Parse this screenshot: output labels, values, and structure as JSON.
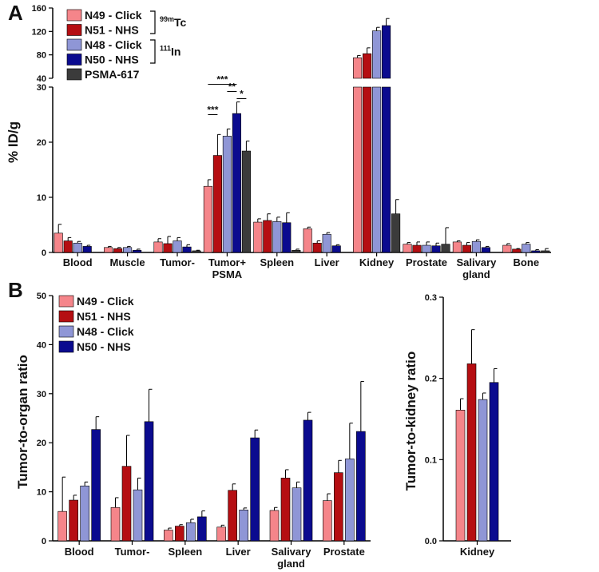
{
  "colors": {
    "N49 - Click": "#f5858a",
    "N51 - NHS": "#b50e12",
    "N48 - Click": "#8f96d6",
    "N50 - NHS": "#0b0b8f",
    "PSMA-617": "#3b3b3b"
  },
  "chart_data": [
    {
      "panel": "A",
      "type": "bar",
      "ylabel": "% ID/g",
      "ylim_lower": [
        0,
        30
      ],
      "ylim_upper": [
        40,
        160
      ],
      "yticks_lower": [
        "0",
        "10",
        "20",
        "30"
      ],
      "yticks_upper": [
        "40",
        "80",
        "120",
        "160"
      ],
      "categories": [
        "Blood",
        "Muscle",
        "Tumor-",
        "Tumor+\nPSMA",
        "Spleen",
        "Liver",
        "Kidney",
        "Prostate",
        "Salivary\ngland",
        "Bone"
      ],
      "isotope_groups": [
        {
          "label": "99mTc",
          "members": [
            "N49 - Click",
            "N51 - NHS"
          ]
        },
        {
          "label": "111In",
          "members": [
            "N48 - Click",
            "N50 - NHS"
          ]
        }
      ],
      "significance": [
        {
          "from": "N49 - Click",
          "to": "N50 - NHS",
          "label": "***"
        },
        {
          "from": "N48 - Click",
          "to": "N50 - NHS",
          "label": "**"
        },
        {
          "from": "N50 - NHS",
          "to": "PSMA-617",
          "label": "*"
        },
        {
          "from": "N49 - Click",
          "to": "N51 - NHS",
          "label": "***"
        }
      ],
      "series": [
        {
          "name": "N49 - Click",
          "values": [
            3.5,
            0.9,
            1.9,
            12.0,
            5.5,
            4.3,
            75,
            1.5,
            1.9,
            1.3
          ],
          "errors": [
            1.6,
            0.2,
            0.6,
            1.2,
            0.6,
            0.3,
            4,
            0.3,
            0.2,
            0.3
          ]
        },
        {
          "name": "N51 - NHS",
          "values": [
            2.1,
            0.7,
            1.6,
            17.6,
            5.8,
            1.7,
            82,
            1.3,
            1.3,
            0.6
          ],
          "errors": [
            0.6,
            0.2,
            1.3,
            3.8,
            1.2,
            0.4,
            10,
            0.6,
            0.5,
            0.1
          ]
        },
        {
          "name": "N48 - Click",
          "values": [
            1.7,
            0.9,
            2.1,
            21.1,
            5.6,
            3.3,
            121,
            1.3,
            2.0,
            1.5
          ],
          "errors": [
            0.3,
            0.2,
            0.6,
            1.3,
            0.8,
            0.3,
            6,
            0.6,
            0.3,
            0.3
          ]
        },
        {
          "name": "N50 - NHS",
          "values": [
            1.1,
            0.4,
            1.0,
            25.2,
            5.4,
            1.2,
            130,
            1.2,
            0.9,
            0.3
          ],
          "errors": [
            0.2,
            0.2,
            0.4,
            2.1,
            1.8,
            0.2,
            12,
            0.5,
            0.2,
            0.2
          ]
        },
        {
          "name": "PSMA-617",
          "values": [
            0.0,
            0.0,
            0.3,
            18.4,
            0.4,
            0.0,
            7.0,
            1.5,
            0.0,
            0.3
          ],
          "errors": [
            0,
            0,
            0.1,
            1.8,
            0.2,
            0,
            2.6,
            3.0,
            0,
            0.4
          ]
        }
      ],
      "legend": [
        "N49 - Click",
        "N51 - NHS",
        "N48 - Click",
        "N50 - NHS",
        "PSMA-617"
      ]
    },
    {
      "panel": "B",
      "type": "bar",
      "ylabel": "Tumor-to-organ ratio",
      "ylim": [
        0,
        50
      ],
      "yticks": [
        "0",
        "10",
        "20",
        "30",
        "40",
        "50"
      ],
      "categories": [
        "Blood",
        "Tumor-",
        "Spleen",
        "Liver",
        "Salivary\ngland",
        "Prostate"
      ],
      "series": [
        {
          "name": "N49 - Click",
          "values": [
            6.0,
            6.8,
            2.2,
            2.8,
            6.2,
            8.2
          ],
          "errors": [
            7.0,
            2.0,
            0.4,
            0.4,
            0.6,
            1.4
          ]
        },
        {
          "name": "N51 - NHS",
          "values": [
            8.3,
            15.2,
            3.0,
            10.3,
            12.8,
            13.9
          ],
          "errors": [
            1.0,
            6.3,
            0.3,
            1.3,
            1.7,
            2.5
          ]
        },
        {
          "name": "N48 - Click",
          "values": [
            11.2,
            10.4,
            3.7,
            6.3,
            10.8,
            16.7
          ],
          "errors": [
            0.8,
            2.4,
            0.7,
            0.4,
            1.2,
            7.3
          ]
        },
        {
          "name": "N50 - NHS",
          "values": [
            22.7,
            24.3,
            4.9,
            21.0,
            24.6,
            22.3
          ],
          "errors": [
            2.6,
            6.6,
            1.2,
            1.6,
            1.6,
            10.2
          ]
        }
      ],
      "legend": [
        "N49 - Click",
        "N51 - NHS",
        "N48 - Click",
        "N50 - NHS"
      ]
    },
    {
      "panel": "B-right",
      "type": "bar",
      "ylabel": "Tumor-to-kidney ratio",
      "ylim": [
        0,
        0.3
      ],
      "yticks": [
        "0.0",
        "0.1",
        "0.2",
        "0.3"
      ],
      "categories": [
        "Kidney"
      ],
      "series": [
        {
          "name": "N49 - Click",
          "values": [
            0.161
          ],
          "errors": [
            0.014
          ]
        },
        {
          "name": "N51 - NHS",
          "values": [
            0.218
          ],
          "errors": [
            0.042
          ]
        },
        {
          "name": "N48 - Click",
          "values": [
            0.174
          ],
          "errors": [
            0.008
          ]
        },
        {
          "name": "N50 - NHS",
          "values": [
            0.195
          ],
          "errors": [
            0.017
          ]
        }
      ]
    }
  ]
}
